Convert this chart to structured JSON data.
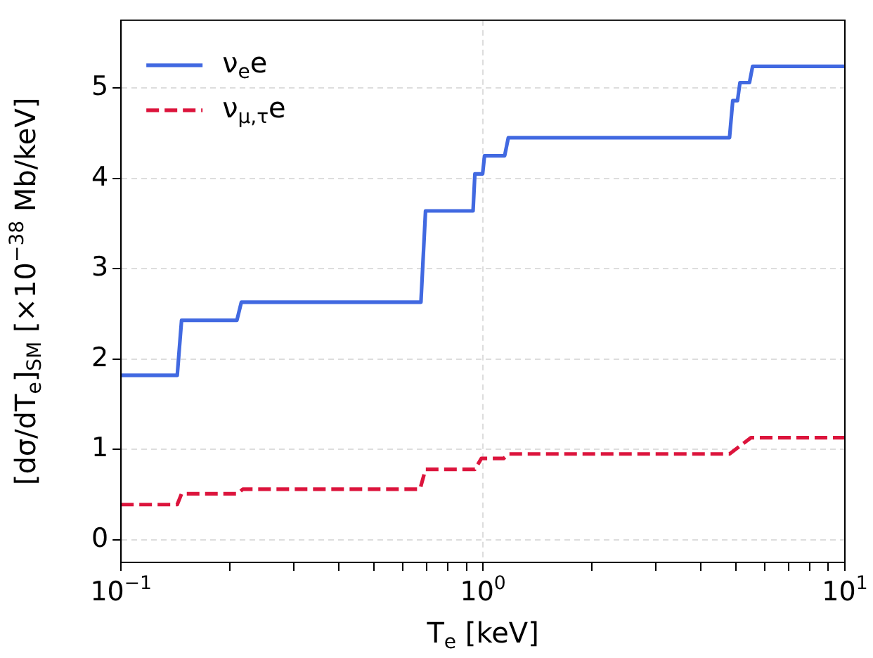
{
  "chart_data": {
    "type": "line",
    "xlabel": "T$_{e}$ [keV]",
    "ylabel": "[dσ/dT$_{e}$]$_{SM}$ [×10$^{−38}$ Mb/keV]",
    "log": "x",
    "xlim": [
      0.1,
      10
    ],
    "ylim": [
      -0.25,
      5.75
    ],
    "xticks": [
      {
        "value": 0.1,
        "label": "10$^{−1}$"
      },
      {
        "value": 0.2,
        "label": null
      },
      {
        "value": 0.3,
        "label": null
      },
      {
        "value": 0.4,
        "label": null
      },
      {
        "value": 0.5,
        "label": null
      },
      {
        "value": 0.6,
        "label": null
      },
      {
        "value": 0.7,
        "label": null
      },
      {
        "value": 0.8,
        "label": null
      },
      {
        "value": 0.9,
        "label": null
      },
      {
        "value": 1,
        "label": "10$^{0}$"
      },
      {
        "value": 2,
        "label": null
      },
      {
        "value": 3,
        "label": null
      },
      {
        "value": 4,
        "label": null
      },
      {
        "value": 5,
        "label": null
      },
      {
        "value": 6,
        "label": null
      },
      {
        "value": 7,
        "label": null
      },
      {
        "value": 8,
        "label": null
      },
      {
        "value": 9,
        "label": null
      },
      {
        "value": 10,
        "label": "10$^{1}$"
      }
    ],
    "yticks": [
      0,
      1,
      2,
      3,
      4,
      5
    ],
    "grid": true,
    "legend": "top left",
    "marker": "none",
    "series": [
      {
        "name": "ν$_{e}$e",
        "color": "#4169e1",
        "line_style": "solid",
        "x": [
          0.1,
          0.143,
          0.147,
          0.209,
          0.215,
          0.674,
          0.694,
          0.939,
          0.95,
          0.998,
          1.01,
          1.148,
          1.175,
          4.8,
          4.9,
          5.05,
          5.13,
          5.45,
          5.56,
          10
        ],
        "values": [
          1.82,
          1.82,
          2.43,
          2.43,
          2.63,
          2.63,
          3.64,
          3.64,
          4.05,
          4.05,
          4.25,
          4.25,
          4.45,
          4.45,
          4.86,
          4.86,
          5.06,
          5.06,
          5.24,
          5.24
        ]
      },
      {
        "name": "ν$_{μ,τ}$e",
        "color": "#dc143c",
        "line_style": "dashed",
        "x": [
          0.1,
          0.143,
          0.147,
          0.21,
          0.217,
          0.67,
          0.694,
          0.95,
          0.99,
          1.14,
          1.18,
          4.8,
          5.1,
          5.5,
          10
        ],
        "values": [
          0.39,
          0.39,
          0.51,
          0.51,
          0.56,
          0.56,
          0.78,
          0.78,
          0.9,
          0.9,
          0.95,
          0.95,
          1.03,
          1.13,
          1.13
        ]
      }
    ]
  }
}
